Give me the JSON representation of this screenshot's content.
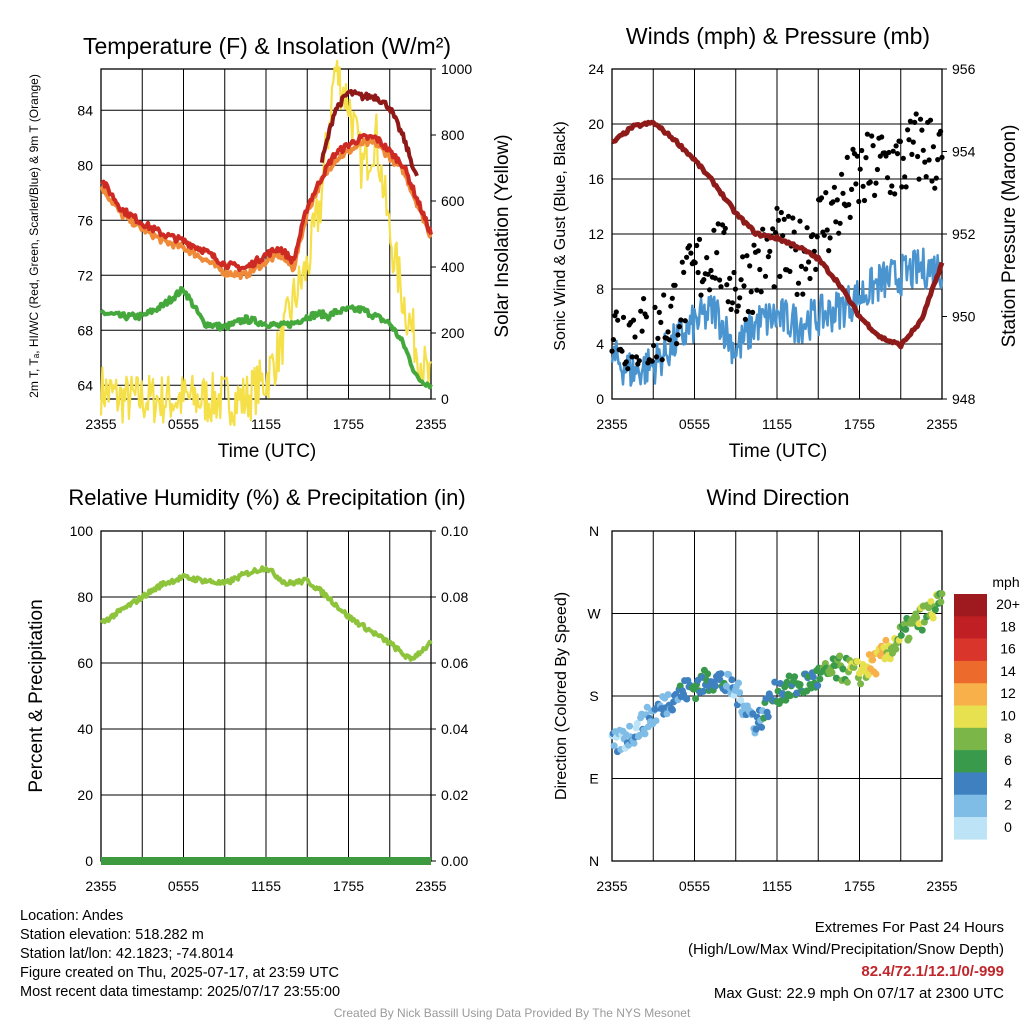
{
  "x_ticks": [
    "2355",
    "0555",
    "1155",
    "1755",
    "2355"
  ],
  "charts": [
    {
      "title": "Temperature (F) & Insolation (W/m²)",
      "xlabel": "Time (UTC)",
      "ylabel_left": "2m T, Tₐ, HI/WC (Red, Green, Scarlet/Blue) & 9m T (Orange)",
      "ylabel_right": "Solar Insolation (Yellow)",
      "left_ticks": [
        "64",
        "68",
        "72",
        "76",
        "80",
        "84"
      ],
      "right_ticks": [
        "0",
        "200",
        "400",
        "600",
        "800",
        "1000"
      ]
    },
    {
      "title": "Winds (mph) & Pressure (mb)",
      "xlabel": "Time (UTC)",
      "ylabel_left": "Sonic Wind & Gust (Blue, Black)",
      "ylabel_right": "Station Pressure (Maroon)",
      "left_ticks": [
        "0",
        "4",
        "8",
        "12",
        "16",
        "20",
        "24"
      ],
      "right_ticks": [
        "948",
        "950",
        "952",
        "954",
        "956"
      ]
    },
    {
      "title": "Relative Humidity (%) & Precipitation (in)",
      "xlabel": "",
      "ylabel_left": "Percent & Precipitation",
      "ylabel_right": "",
      "left_ticks": [
        "0",
        "20",
        "40",
        "60",
        "80",
        "100"
      ],
      "right_ticks": [
        "0.00",
        "0.02",
        "0.04",
        "0.06",
        "0.08",
        "0.10"
      ]
    },
    {
      "title": "Wind Direction",
      "xlabel": "",
      "ylabel_left": "Direction (Colored By Speed)",
      "ylabel_right": "",
      "left_ticks": [
        "N",
        "E",
        "S",
        "W",
        "N"
      ],
      "right_ticks": []
    }
  ],
  "legend": {
    "title": "mph",
    "labels": [
      "0",
      "2",
      "4",
      "6",
      "8",
      "10",
      "12",
      "14",
      "16",
      "18",
      "20+"
    ],
    "colors": [
      "#bde4f6",
      "#7fbde6",
      "#3f80c0",
      "#3a9a4c",
      "#7ab648",
      "#e7e04f",
      "#f7b04a",
      "#ec6a2c",
      "#d9352a",
      "#c01f23",
      "#9e1a1e"
    ]
  },
  "colors": {
    "temp": "#cc2a22",
    "dewpoint": "#44a83c",
    "heat_index": "#8f1818",
    "temp_9m": "#ef8a38",
    "insolation": "#f5e04a",
    "sonic_wind": "#4a94cf",
    "gust": "#000000",
    "pressure": "#8e1a1a",
    "rh": "#8ec43c",
    "precip": "#3e9a3e"
  },
  "info": {
    "location": "Location: Andes",
    "elevation": "Station elevation: 518.282 m",
    "latlon": "Station lat/lon: 42.1823; -74.8014",
    "created": "Figure created on Thu, 2025-07-17, at 23:59 UTC",
    "recent": "Most recent data timestamp: 2025/07/17 23:55:00"
  },
  "extremes": {
    "title": "Extremes For Past 24 Hours",
    "subtitle": "(High/Low/Max Wind/Precipitation/Snow Depth)",
    "values": "82.4/72.1/12.1/0/-999",
    "max_gust": "Max Gust: 22.9 mph On 07/17 at 2300 UTC"
  },
  "credit": "Created By Nick Bassill Using Data Provided By The NYS Mesonet",
  "chart_data": [
    {
      "type": "line",
      "title": "Temperature (F) & Insolation (W/m²)",
      "xlabel": "Time (UTC)",
      "x": [
        0,
        1.5,
        3,
        4.5,
        6,
        7.5,
        9,
        10.5,
        12,
        13,
        14,
        15,
        16,
        16.5,
        17,
        18,
        19,
        20,
        21,
        22,
        23,
        24
      ],
      "ylim": [
        63,
        87
      ],
      "y2lim": [
        0,
        1000
      ],
      "series": [
        {
          "name": "2m T",
          "axis": "left",
          "values": [
            79,
            76.8,
            75.8,
            75.0,
            74.5,
            73.8,
            72.8,
            72.5,
            73.5,
            74.0,
            73.0,
            77.0,
            79.0,
            80.0,
            80.8,
            81.5,
            82.0,
            82.0,
            81.0,
            80.0,
            77.5,
            75.0
          ]
        },
        {
          "name": "2m Tₐ",
          "axis": "left",
          "values": [
            69.3,
            69.0,
            69.0,
            69.8,
            71.0,
            68.5,
            68.2,
            68.8,
            68.5,
            68.3,
            68.5,
            69.0,
            69.2,
            69.0,
            69.3,
            69.5,
            69.5,
            69.0,
            68.5,
            67.0,
            64.5,
            64.0
          ]
        },
        {
          "name": "HI/WC",
          "axis": "left",
          "values": [
            null,
            null,
            null,
            null,
            null,
            null,
            null,
            null,
            null,
            null,
            null,
            null,
            80.0,
            82.0,
            84.0,
            85.3,
            85.0,
            85.0,
            84.2,
            82.0,
            79.0,
            null
          ]
        },
        {
          "name": "9m T",
          "axis": "left",
          "values": [
            78.5,
            76.4,
            75.4,
            74.5,
            74.0,
            73.2,
            72.2,
            72.0,
            73.0,
            73.5,
            72.5,
            76.6,
            78.8,
            79.6,
            80.4,
            81.0,
            81.6,
            81.6,
            80.6,
            79.6,
            77.2,
            74.8
          ]
        },
        {
          "name": "Insolation",
          "axis": "right",
          "values": [
            30,
            0,
            0,
            0,
            0,
            0,
            0,
            0,
            60,
            150,
            300,
            400,
            600,
            800,
            1000,
            900,
            700,
            800,
            500,
            300,
            150,
            40
          ]
        }
      ]
    },
    {
      "type": "line",
      "title": "Winds (mph) & Pressure (mb)",
      "xlabel": "Time (UTC)",
      "x": [
        0,
        1.5,
        3,
        4.5,
        6,
        7.5,
        9,
        10.5,
        12,
        13.5,
        15,
        16.5,
        18,
        19.5,
        21,
        22.5,
        24
      ],
      "ylim": [
        0,
        24
      ],
      "y2lim": [
        948,
        956
      ],
      "series": [
        {
          "name": "Sonic Wind",
          "axis": "left",
          "values": [
            3.0,
            2.0,
            2.5,
            4.0,
            5.5,
            6.5,
            3.5,
            5.5,
            6.0,
            5.5,
            6.0,
            6.5,
            7.5,
            8.5,
            9.0,
            9.5,
            9.5
          ]
        },
        {
          "name": "Gust",
          "axis": "left",
          "values": [
            5.0,
            5.0,
            4.5,
            6.5,
            9.0,
            11.0,
            8.0,
            9.5,
            11.0,
            10.0,
            12.5,
            14.0,
            16.0,
            17.0,
            17.0,
            18.5,
            17.5
          ]
        },
        {
          "name": "Station Pressure",
          "axis": "right",
          "values": [
            954.2,
            954.6,
            954.7,
            954.3,
            953.8,
            953.2,
            952.5,
            952.0,
            951.9,
            951.7,
            951.4,
            950.8,
            950.0,
            949.5,
            949.3,
            949.9,
            951.3
          ]
        }
      ]
    },
    {
      "type": "line",
      "title": "Relative Humidity (%) & Precipitation (in)",
      "x": [
        0,
        1.5,
        3,
        4.5,
        6,
        7.5,
        9,
        10.5,
        12,
        13.5,
        15,
        16.5,
        18,
        19.5,
        21,
        22.5,
        24
      ],
      "ylim": [
        0,
        100
      ],
      "y2lim": [
        0,
        0.1
      ],
      "series": [
        {
          "name": "Relative Humidity",
          "axis": "left",
          "values": [
            72,
            76,
            80,
            84,
            86,
            85,
            84,
            87,
            89,
            84,
            85,
            80,
            74,
            70,
            66,
            61,
            66
          ]
        },
        {
          "name": "Precipitation",
          "axis": "right",
          "values": [
            0,
            0,
            0,
            0,
            0,
            0,
            0,
            0,
            0,
            0,
            0,
            0,
            0,
            0,
            0,
            0,
            0
          ]
        }
      ]
    },
    {
      "type": "scatter",
      "title": "Wind Direction",
      "ylabel": "Direction (Colored By Speed)",
      "x": [
        0,
        1.5,
        3,
        4.5,
        6,
        7.5,
        9,
        10.5,
        12,
        13.5,
        15,
        16.5,
        18,
        19.5,
        21,
        22.5,
        24
      ],
      "ylim": [
        0,
        360
      ],
      "series": [
        {
          "name": "Direction",
          "values": [
            125,
            140,
            160,
            180,
            190,
            200,
            185,
            150,
            185,
            190,
            200,
            210,
            205,
            220,
            245,
            265,
            282
          ]
        },
        {
          "name": "Speed",
          "values": [
            2,
            2,
            3,
            4,
            5,
            5,
            2,
            3,
            5,
            5,
            6,
            7,
            9,
            11,
            8,
            8,
            8
          ]
        }
      ]
    }
  ]
}
